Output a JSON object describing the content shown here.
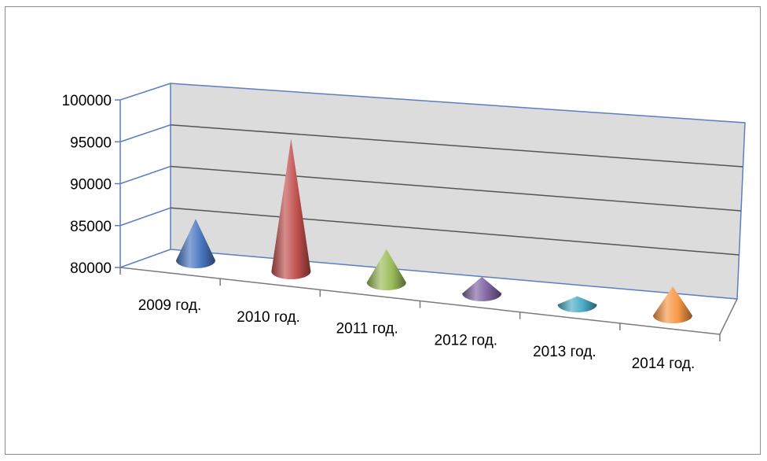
{
  "chart_data": {
    "type": "bar",
    "bar_shape": "cone",
    "three_d": true,
    "categories": [
      "2009 год.",
      "2010 год.",
      "2011 год.",
      "2012 год.",
      "2013 год.",
      "2014 год."
    ],
    "series": [
      {
        "values": [
          85000,
          96000,
          84000,
          82000,
          81000,
          83500
        ]
      }
    ],
    "colors": [
      "#4a76c0",
      "#c0504d",
      "#9bbb59",
      "#8064a2",
      "#4bacc6",
      "#f79646"
    ],
    "yticks": [
      "80000",
      "85000",
      "90000",
      "95000",
      "100000"
    ],
    "ylim": [
      80000,
      100000
    ],
    "grid": true,
    "legend": "none",
    "wall_color": "#dcdcdc",
    "axis_color": "#5b7fbf"
  }
}
